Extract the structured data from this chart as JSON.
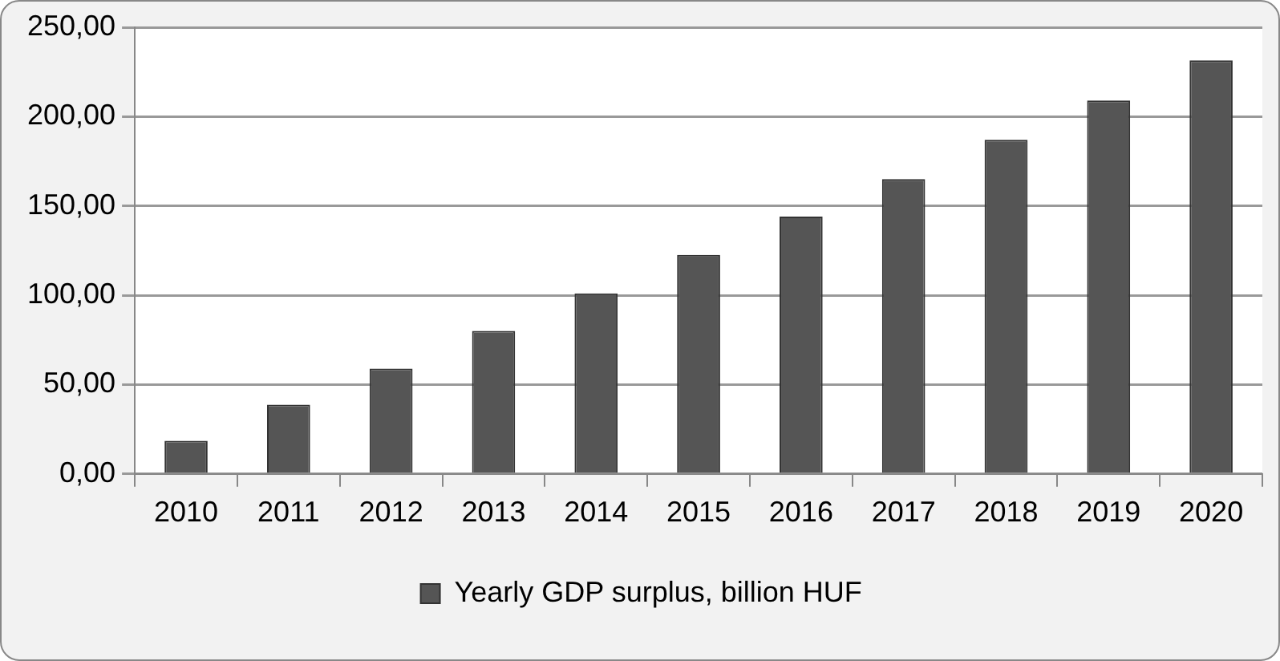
{
  "chart_data": {
    "type": "bar",
    "categories": [
      "2010",
      "2011",
      "2012",
      "2013",
      "2014",
      "2015",
      "2016",
      "2017",
      "2018",
      "2019",
      "2020"
    ],
    "series": [
      {
        "name": "Yearly GDP surplus, billion HUF",
        "color": "#555555",
        "values": [
          18.5,
          38.7,
          59,
          80,
          101,
          122.6,
          144,
          165,
          187,
          209,
          231.5
        ]
      }
    ],
    "ylim": [
      0,
      250
    ],
    "yticks": [
      {
        "value": 0,
        "label": "0,00"
      },
      {
        "value": 50,
        "label": "50,00"
      },
      {
        "value": 100,
        "label": "100,00"
      },
      {
        "value": 150,
        "label": "150,00"
      },
      {
        "value": 200,
        "label": "200,00"
      },
      {
        "value": 250,
        "label": "250,00"
      }
    ],
    "grid": "y",
    "legend": "bottom"
  }
}
